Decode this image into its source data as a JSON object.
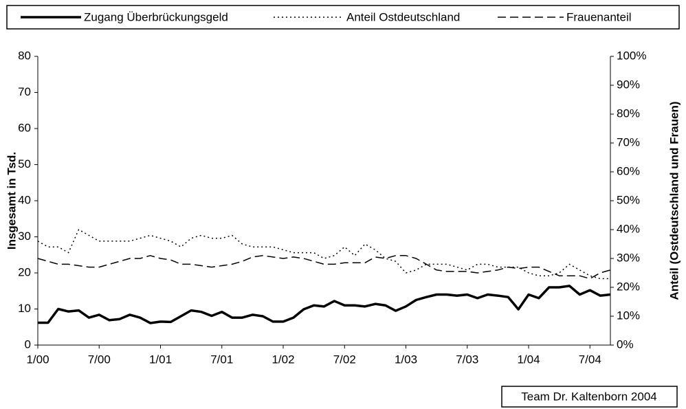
{
  "chart_data": {
    "type": "line",
    "y_label": "Insgesamt in Tsd.",
    "y2_label": "Anteil (Ostdeutschland und Frauen)",
    "source": "Team Dr. Kaltenborn 2004",
    "categories": [
      "1/00",
      null,
      null,
      null,
      null,
      null,
      "7/00",
      null,
      null,
      null,
      null,
      null,
      "1/01",
      null,
      null,
      null,
      null,
      null,
      "7/01",
      null,
      null,
      null,
      null,
      null,
      "1/02",
      null,
      null,
      null,
      null,
      null,
      "7/02",
      null,
      null,
      null,
      null,
      null,
      "1/03",
      null,
      null,
      null,
      null,
      null,
      "7/03",
      null,
      null,
      null,
      null,
      null,
      "1/04",
      null,
      null,
      null,
      null,
      null,
      "7/04",
      null,
      null
    ],
    "ylim": [
      0,
      80
    ],
    "yticks": [
      0,
      10,
      20,
      30,
      40,
      50,
      60,
      70,
      80
    ],
    "y2lim": [
      0,
      100
    ],
    "y2ticks": [
      {
        "value": 0,
        "label": "0%"
      },
      {
        "value": 10,
        "label": "10%"
      },
      {
        "value": 20,
        "label": "20%"
      },
      {
        "value": 30,
        "label": "30%"
      },
      {
        "value": 40,
        "label": "40%"
      },
      {
        "value": 50,
        "label": "50%"
      },
      {
        "value": 60,
        "label": "60%"
      },
      {
        "value": 70,
        "label": "70%"
      },
      {
        "value": 80,
        "label": "80%"
      },
      {
        "value": 90,
        "label": "90%"
      },
      {
        "value": 100,
        "label": "100%"
      }
    ],
    "series": [
      {
        "name": "Zugang Überbrückungsgeld",
        "color": "#000000",
        "style": "solid",
        "values": [
          6.2,
          6.2,
          10,
          9.3,
          9.6,
          7.6,
          8.4,
          6.9,
          7.2,
          8.4,
          7.6,
          6.1,
          6.5,
          6.4,
          8,
          9.6,
          9.2,
          8.1,
          9.2,
          7.6,
          7.6,
          8.4,
          8,
          6.5,
          6.5,
          7.6,
          9.9,
          11,
          10.7,
          12.2,
          11,
          11,
          10.7,
          11.4,
          11,
          9.5,
          10.7,
          12.5,
          13.3,
          14,
          14,
          13.7,
          14,
          13,
          14,
          13.7,
          13.3,
          9.9,
          14,
          13,
          16,
          16,
          16.4,
          14,
          15.2,
          13.7,
          14
        ]
      },
      {
        "name": "Anteil Ostdeutschland",
        "color": "#000000",
        "style": "dotted",
        "axis": "y2",
        "values": [
          36,
          34,
          34,
          32,
          40,
          38,
          36,
          36,
          36,
          36,
          37,
          38,
          37,
          36,
          34,
          37,
          38,
          37,
          37,
          38,
          35,
          34,
          34,
          34,
          33,
          32,
          32,
          32,
          30,
          31,
          34,
          31,
          35,
          33,
          30,
          29,
          25,
          26,
          28,
          28,
          28,
          27,
          26,
          28,
          28,
          27,
          27,
          27,
          25,
          24,
          24,
          25,
          28,
          26,
          24,
          23,
          23
        ]
      },
      {
        "name": "Frauenanteil",
        "color": "#000000",
        "style": "dashed",
        "axis": "y2",
        "values": [
          30,
          29,
          28,
          28,
          27.5,
          27,
          27,
          28,
          29,
          30,
          30,
          31,
          30,
          29.5,
          28,
          28,
          27.5,
          27,
          27.5,
          28,
          29,
          30.5,
          31,
          30.5,
          30,
          30.5,
          30,
          29,
          28,
          28,
          28.5,
          28.5,
          28.5,
          30.5,
          30,
          31,
          31,
          30,
          28,
          26,
          25.5,
          25.5,
          25.5,
          25,
          25.5,
          26,
          27,
          26.5,
          27,
          27,
          25.5,
          24,
          24,
          24,
          23,
          25,
          26
        ]
      }
    ]
  }
}
